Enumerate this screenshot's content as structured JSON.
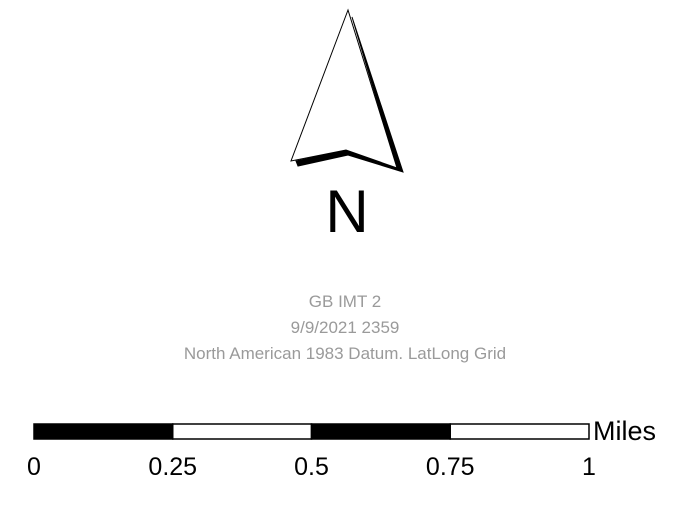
{
  "north_arrow": {
    "letter": "N",
    "icon": "north-arrow-icon"
  },
  "map_info": {
    "title": "GB IMT 2",
    "date": "9/9/2021 2359",
    "datum": "North American 1983 Datum. LatLong Grid"
  },
  "scale_bar": {
    "unit": "Miles",
    "ticks": [
      {
        "value": 0,
        "label": "0"
      },
      {
        "value": 0.25,
        "label": "0.25"
      },
      {
        "value": 0.5,
        "label": "0.5"
      },
      {
        "value": 0.75,
        "label": "0.75"
      },
      {
        "value": 1,
        "label": "1"
      }
    ],
    "segment_fills": [
      "#000000",
      "#ffffff",
      "#000000",
      "#ffffff"
    ]
  }
}
